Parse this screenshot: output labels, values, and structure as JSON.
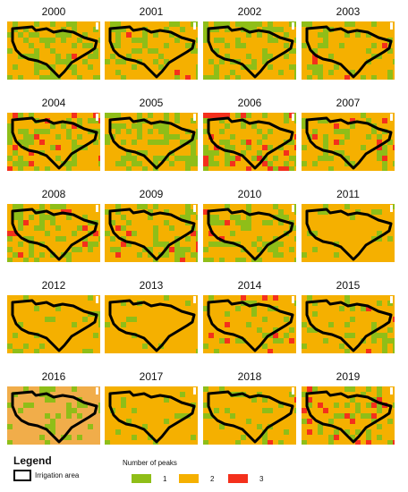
{
  "colors": {
    "class_1": "#8fbe18",
    "class_2": "#f5b000",
    "class_3": "#f4301c",
    "faded_2016": "#f1ad4a",
    "outline": "#000000",
    "background": "#ffffff"
  },
  "panels": [
    {
      "year": "2000",
      "grid_seed": 11,
      "green": 0.32,
      "red": 0.02
    },
    {
      "year": "2001",
      "grid_seed": 23,
      "green": 0.28,
      "red": 0.02
    },
    {
      "year": "2002",
      "grid_seed": 37,
      "green": 0.35,
      "red": 0.0
    },
    {
      "year": "2003",
      "grid_seed": 41,
      "green": 0.22,
      "red": 0.02
    },
    {
      "year": "2004",
      "grid_seed": 53,
      "green": 0.3,
      "red": 0.06
    },
    {
      "year": "2005",
      "grid_seed": 67,
      "green": 0.38,
      "red": 0.0
    },
    {
      "year": "2006",
      "grid_seed": 71,
      "green": 0.3,
      "red": 0.08
    },
    {
      "year": "2007",
      "grid_seed": 83,
      "green": 0.25,
      "red": 0.03
    },
    {
      "year": "2008",
      "grid_seed": 97,
      "green": 0.32,
      "red": 0.03
    },
    {
      "year": "2009",
      "grid_seed": 101,
      "green": 0.3,
      "red": 0.03
    },
    {
      "year": "2010",
      "grid_seed": 113,
      "green": 0.28,
      "red": 0.02
    },
    {
      "year": "2011",
      "grid_seed": 127,
      "green": 0.12,
      "red": 0.01
    },
    {
      "year": "2012",
      "grid_seed": 131,
      "green": 0.12,
      "red": 0.0
    },
    {
      "year": "2013",
      "grid_seed": 149,
      "green": 0.08,
      "red": 0.0
    },
    {
      "year": "2014",
      "grid_seed": 151,
      "green": 0.14,
      "red": 0.03
    },
    {
      "year": "2015",
      "grid_seed": 163,
      "green": 0.16,
      "red": 0.02
    },
    {
      "year": "2016",
      "grid_seed": 173,
      "green": 0.18,
      "red": 0.0,
      "faded": true
    },
    {
      "year": "2017",
      "grid_seed": 181,
      "green": 0.1,
      "red": 0.0
    },
    {
      "year": "2018",
      "grid_seed": 191,
      "green": 0.2,
      "red": 0.01
    },
    {
      "year": "2019",
      "grid_seed": 199,
      "green": 0.2,
      "red": 0.06
    }
  ],
  "legend": {
    "title": "Legend",
    "outline_label": "Irrigation area",
    "peaks_title": "Number of peaks",
    "classes": [
      {
        "label": "1",
        "color": "#8fbe18"
      },
      {
        "label": "2",
        "color": "#f5b000"
      },
      {
        "label": "3",
        "color": "#f4301c"
      }
    ]
  }
}
